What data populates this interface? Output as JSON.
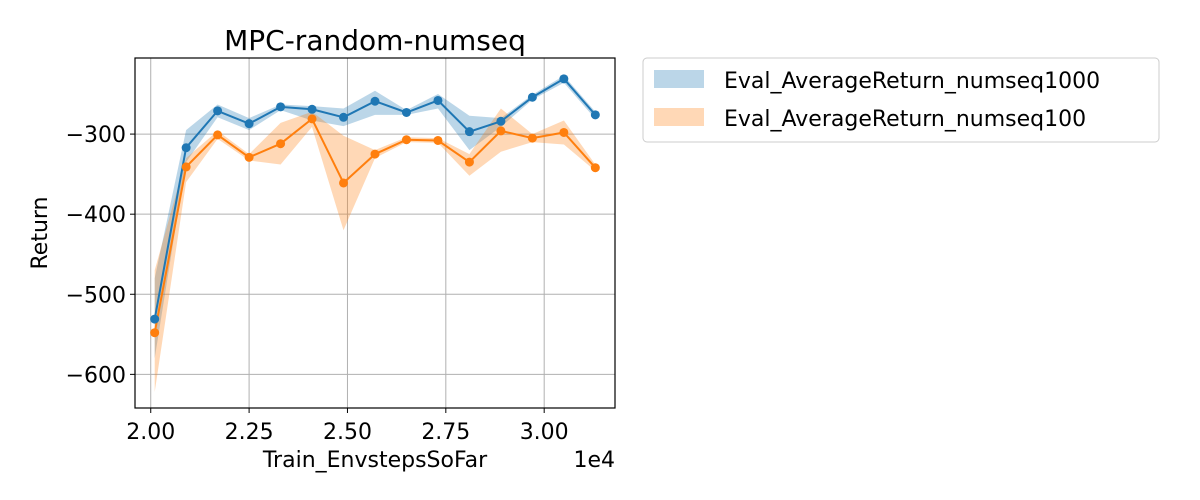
{
  "chart_data": {
    "type": "line",
    "title": "MPC-random-numseq",
    "xlabel": "Train_EnvstepsSoFar",
    "ylabel": "Return",
    "x_multiplier_label": "1e4",
    "x": [
      2.01,
      2.09,
      2.17,
      2.25,
      2.33,
      2.41,
      2.49,
      2.57,
      2.65,
      2.73,
      2.81,
      2.89,
      2.97,
      3.05,
      3.13
    ],
    "xlim": [
      1.96,
      3.18
    ],
    "ylim": [
      -642,
      -205
    ],
    "xticks": [
      2.0,
      2.25,
      2.5,
      2.75,
      3.0
    ],
    "xtick_labels": [
      "2.00",
      "2.25",
      "2.50",
      "2.75",
      "3.00"
    ],
    "yticks": [
      -600,
      -500,
      -400,
      -300
    ],
    "ytick_labels": [
      "−600",
      "−500",
      "−400",
      "−300"
    ],
    "grid": true,
    "legend_placement": "outside-upper-right",
    "series": [
      {
        "name": "Eval_AverageReturn_numseq1000",
        "color": "#1f77b4",
        "values": [
          -531,
          -317,
          -271,
          -287,
          -266,
          -269,
          -279,
          -259,
          -273,
          -258,
          -297,
          -284,
          -254,
          -231,
          -276
        ],
        "upper": [
          -480,
          -295,
          -263,
          -280,
          -263,
          -265,
          -268,
          -246,
          -270,
          -250,
          -277,
          -280,
          -251,
          -227,
          -272
        ],
        "lower": [
          -580,
          -335,
          -279,
          -295,
          -270,
          -283,
          -290,
          -276,
          -276,
          -268,
          -320,
          -291,
          -257,
          -236,
          -281
        ]
      },
      {
        "name": "Eval_AverageReturn_numseq100",
        "color": "#ff7f0e",
        "values": [
          -548,
          -341,
          -301,
          -329,
          -312,
          -281,
          -361,
          -325,
          -307,
          -308,
          -335,
          -296,
          -305,
          -298,
          -342
        ],
        "upper": [
          -470,
          -330,
          -296,
          -325,
          -286,
          -272,
          -302,
          -320,
          -304,
          -305,
          -325,
          -268,
          -300,
          -283,
          -338
        ],
        "lower": [
          -622,
          -360,
          -306,
          -333,
          -338,
          -291,
          -420,
          -330,
          -310,
          -311,
          -352,
          -322,
          -310,
          -313,
          -346
        ]
      }
    ]
  }
}
